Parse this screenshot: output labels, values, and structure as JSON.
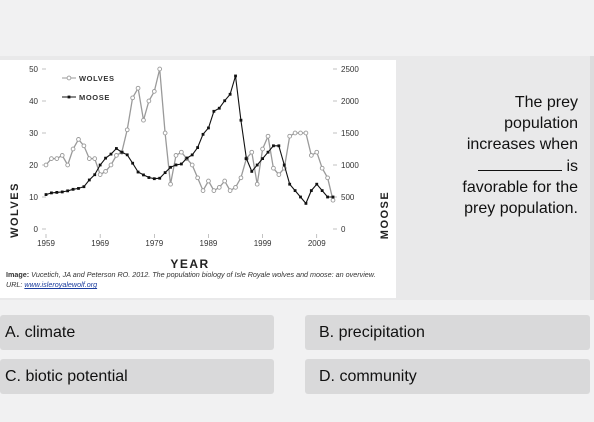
{
  "question": {
    "line1": "The prey",
    "line2": "population",
    "line3": "increases when",
    "line4_suffix": "is",
    "line5": "favorable for the",
    "line6": "prey population."
  },
  "answers": [
    {
      "label": "A. climate"
    },
    {
      "label": "B. precipitation"
    },
    {
      "label": "C. biotic potential"
    },
    {
      "label": "D. community"
    }
  ],
  "caption": {
    "prefix": "Image:",
    "text": "Vucetich, JA and Peterson RO. 2012. The population biology of Isle Royale wolves and moose: an overview. URL:",
    "link": "www.isleroyalewolf.org"
  },
  "chart_data": {
    "type": "line",
    "xlabel": "Year",
    "ylabel_left": "Wolves",
    "ylabel_right": "Moose",
    "x_ticks": [
      "1959",
      "1969",
      "1979",
      "1989",
      "1999",
      "2009"
    ],
    "y_left_ticks": [
      "0",
      "10",
      "20",
      "30",
      "40",
      "50"
    ],
    "y_right_ticks": [
      "0",
      "500",
      "1000",
      "1500",
      "2000",
      "2500"
    ],
    "ylim_left": [
      0,
      50
    ],
    "ylim_right": [
      0,
      2500
    ],
    "xlim": [
      1959,
      2012
    ],
    "legend": [
      "Wolves",
      "Moose"
    ],
    "legend_position": "top-left",
    "colors": {
      "wolves": "#9a9a9a",
      "moose": "#111111"
    },
    "series": [
      {
        "name": "Wolves",
        "axis": "left",
        "x": [
          1959,
          1960,
          1961,
          1962,
          1963,
          1964,
          1965,
          1966,
          1967,
          1968,
          1969,
          1970,
          1971,
          1972,
          1973,
          1974,
          1975,
          1976,
          1977,
          1978,
          1979,
          1980,
          1981,
          1982,
          1983,
          1984,
          1985,
          1986,
          1987,
          1988,
          1989,
          1990,
          1991,
          1992,
          1993,
          1994,
          1995,
          1996,
          1997,
          1998,
          1999,
          2000,
          2001,
          2002,
          2003,
          2004,
          2005,
          2006,
          2007,
          2008,
          2009,
          2010,
          2011,
          2012
        ],
        "values": [
          20,
          22,
          22,
          23,
          20,
          25,
          28,
          26,
          22,
          22,
          17,
          18,
          20,
          23,
          24,
          31,
          41,
          44,
          34,
          40,
          43,
          50,
          30,
          14,
          23,
          24,
          22,
          20,
          16,
          12,
          15,
          12,
          13,
          15,
          12,
          13,
          16,
          22,
          24,
          14,
          25,
          29,
          19,
          17,
          19,
          29,
          30,
          30,
          30,
          23,
          24,
          19,
          16,
          9
        ]
      },
      {
        "name": "Moose",
        "axis": "right",
        "x": [
          1959,
          1960,
          1961,
          1962,
          1963,
          1964,
          1965,
          1966,
          1967,
          1968,
          1969,
          1970,
          1971,
          1972,
          1973,
          1974,
          1975,
          1976,
          1977,
          1978,
          1979,
          1980,
          1981,
          1982,
          1983,
          1984,
          1985,
          1986,
          1987,
          1988,
          1989,
          1990,
          1991,
          1992,
          1993,
          1994,
          1995,
          1996,
          1997,
          1998,
          1999,
          2000,
          2001,
          2002,
          2003,
          2004,
          2005,
          2006,
          2007,
          2008,
          2009,
          2010,
          2011,
          2012
        ],
        "values": [
          538,
          564,
          572,
          579,
          596,
          620,
          634,
          661,
          766,
          848,
          1000,
          1107,
          1170,
          1258,
          1199,
          1159,
          1028,
          890,
          845,
          804,
          786,
          793,
          881,
          964,
          1001,
          1016,
          1106,
          1158,
          1272,
          1479,
          1579,
          1839,
          1887,
          2004,
          2105,
          2391,
          1700,
          1100,
          900,
          1000,
          1100,
          1200,
          1300,
          1300,
          1000,
          700,
          600,
          500,
          400,
          600,
          700,
          600,
          500,
          500
        ]
      }
    ]
  }
}
